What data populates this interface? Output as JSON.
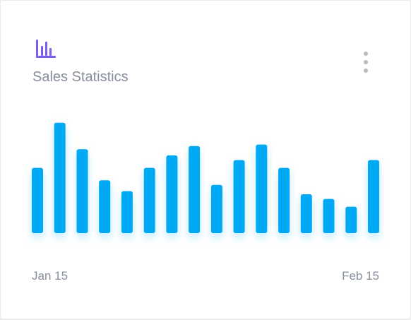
{
  "card": {
    "title": "Sales Statistics",
    "icon": "bar-chart-icon",
    "menu_icon": "more-vertical-icon",
    "accent_color": "#7b5cf0"
  },
  "chart_data": {
    "type": "bar",
    "x_labels": [
      "Jan 15",
      "Feb 15"
    ],
    "values": [
      42,
      71,
      54,
      34,
      27,
      42,
      50,
      56,
      31,
      47,
      57,
      42,
      25,
      22,
      17,
      47
    ],
    "ylim": [
      0,
      75
    ],
    "color": "#03a9f4",
    "grid": false,
    "legend": "none"
  }
}
